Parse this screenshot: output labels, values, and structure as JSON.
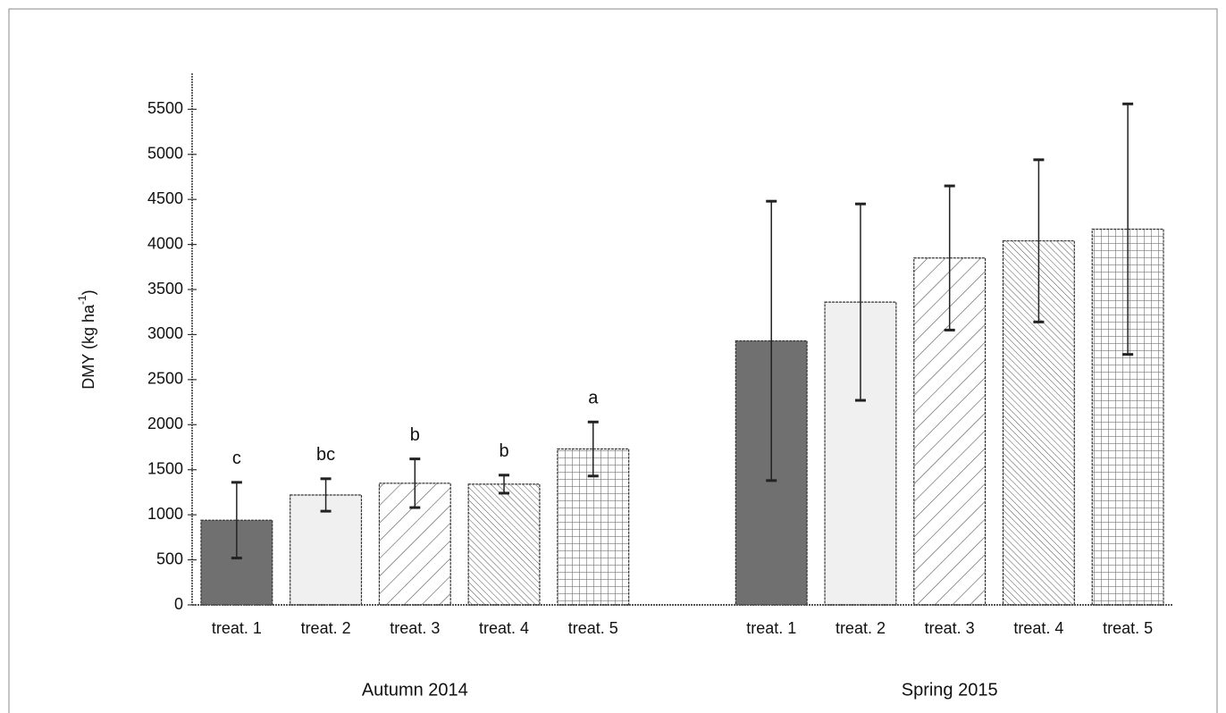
{
  "chart_data": {
    "type": "bar",
    "y_label": "DMY (kg ha",
    "y_label_sup": "-1",
    "y_label_end": ")",
    "categories": [
      "Autumn 2014",
      "Spring 2015"
    ],
    "series": [
      {
        "name": "treat. 1",
        "color": "#707070",
        "pattern": "solid",
        "values": [
          940,
          2930
        ],
        "errors": [
          420,
          1550
        ],
        "annotations": [
          "c",
          null
        ]
      },
      {
        "name": "treat. 2",
        "color": "#f0f0f0",
        "pattern": "solid",
        "values": [
          1220,
          3360
        ],
        "errors": [
          180,
          1090
        ],
        "annotations": [
          "bc",
          null
        ]
      },
      {
        "name": "treat. 3",
        "color": "#555555",
        "pattern": "wide-diagonal",
        "values": [
          1350,
          3850
        ],
        "errors": [
          270,
          800
        ],
        "annotations": [
          "b",
          null
        ]
      },
      {
        "name": "treat. 4",
        "color": "#555555",
        "pattern": "dense-backdiagonal",
        "values": [
          1340,
          4040
        ],
        "errors": [
          100,
          900
        ],
        "annotations": [
          "b",
          null
        ]
      },
      {
        "name": "treat. 5",
        "color": "#555555",
        "pattern": "grid",
        "values": [
          1730,
          4170
        ],
        "errors": [
          300,
          1390
        ],
        "annotations": [
          "a",
          null
        ]
      }
    ],
    "ylim": [
      0,
      5900
    ],
    "yticks": [
      0,
      500,
      1000,
      1500,
      2000,
      2500,
      3000,
      3500,
      4000,
      4500,
      5000,
      5500
    ]
  }
}
